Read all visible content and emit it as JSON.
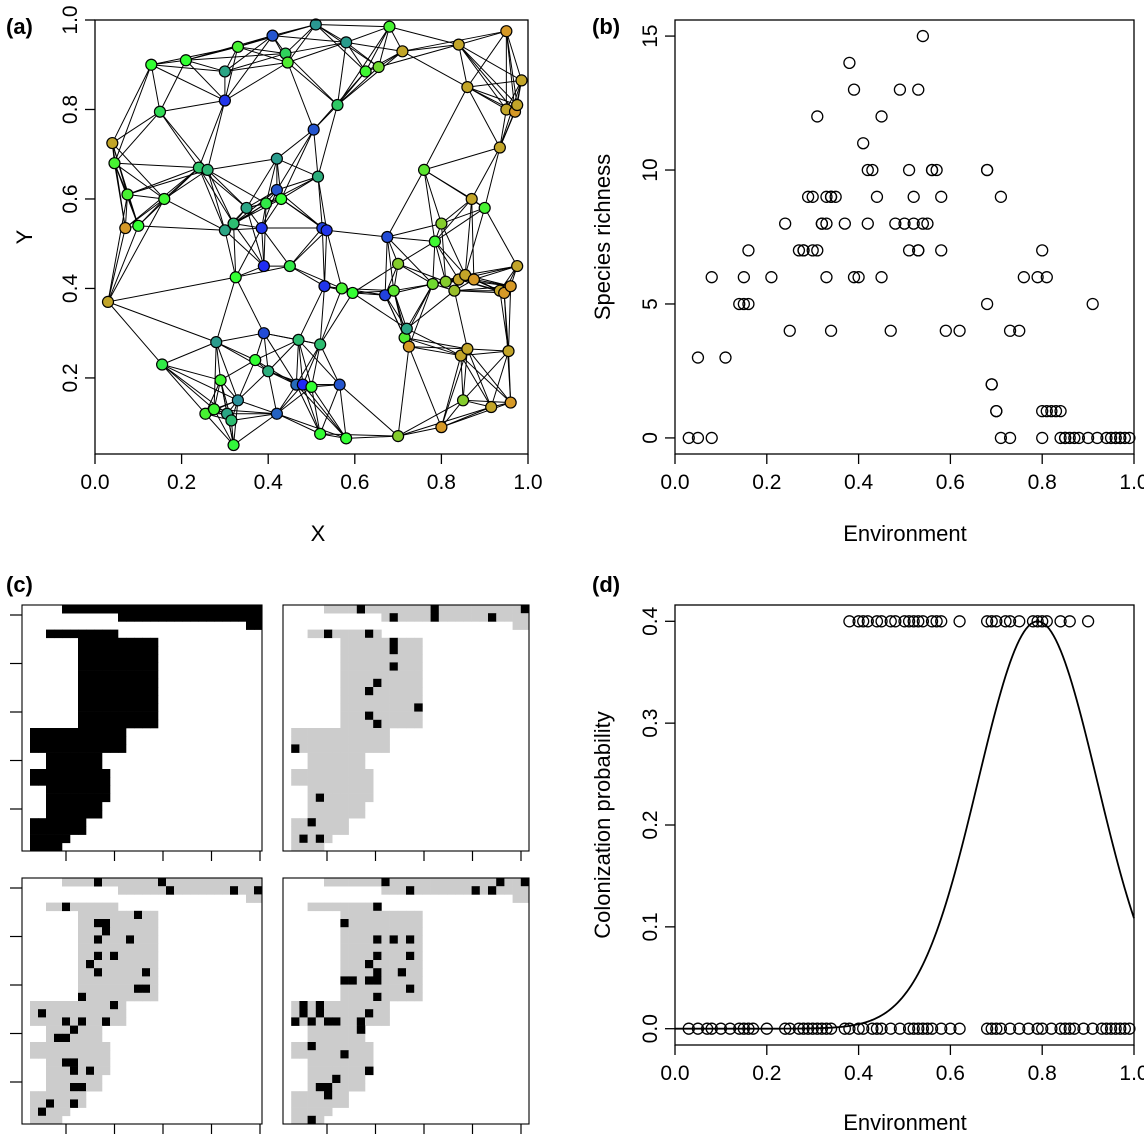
{
  "panels": {
    "a": {
      "label": "(a)"
    },
    "b": {
      "label": "(b)"
    },
    "c": {
      "label": "(c)"
    },
    "d": {
      "label": "(d)"
    }
  },
  "chart_data": [
    {
      "id": "a",
      "type": "scatter",
      "title": "",
      "xlabel": "X",
      "ylabel": "Y",
      "xlim": [
        0,
        1
      ],
      "ylim": [
        0.03,
        1.0
      ],
      "xticks": [
        "0.0",
        "0.2",
        "0.4",
        "0.6",
        "0.8",
        "1.0"
      ],
      "yticks": [
        "0.2",
        "0.4",
        "0.6",
        "0.8",
        "1.0"
      ],
      "grid": false,
      "network_edges": "each site linked to its ~7 nearest neighbours",
      "color_scale": {
        "low": "#ff7f24",
        "mid": "#33ff33",
        "high": "#1f1fff"
      },
      "points": [
        [
          0.03,
          0.37,
          0.15
        ],
        [
          0.04,
          0.725,
          0.15
        ],
        [
          0.045,
          0.68,
          0.45
        ],
        [
          0.07,
          0.535,
          0.1
        ],
        [
          0.075,
          0.61,
          0.45
        ],
        [
          0.1,
          0.54,
          0.5
        ],
        [
          0.13,
          0.9,
          0.5
        ],
        [
          0.15,
          0.795,
          0.58
        ],
        [
          0.155,
          0.23,
          0.55
        ],
        [
          0.16,
          0.6,
          0.47
        ],
        [
          0.21,
          0.91,
          0.5
        ],
        [
          0.24,
          0.67,
          0.63
        ],
        [
          0.255,
          0.12,
          0.45
        ],
        [
          0.26,
          0.665,
          0.66
        ],
        [
          0.275,
          0.13,
          0.47
        ],
        [
          0.28,
          0.28,
          0.72
        ],
        [
          0.29,
          0.195,
          0.47
        ],
        [
          0.3,
          0.885,
          0.7
        ],
        [
          0.3,
          0.53,
          0.7
        ],
        [
          0.3,
          0.82,
          0.95
        ],
        [
          0.305,
          0.12,
          0.7
        ],
        [
          0.315,
          0.105,
          0.65
        ],
        [
          0.32,
          0.05,
          0.52
        ],
        [
          0.32,
          0.545,
          0.65
        ],
        [
          0.325,
          0.425,
          0.5
        ],
        [
          0.33,
          0.94,
          0.45
        ],
        [
          0.33,
          0.15,
          0.75
        ],
        [
          0.35,
          0.58,
          0.7
        ],
        [
          0.37,
          0.24,
          0.5
        ],
        [
          0.385,
          0.535,
          0.95
        ],
        [
          0.39,
          0.45,
          0.97
        ],
        [
          0.39,
          0.3,
          0.9
        ],
        [
          0.395,
          0.59,
          0.55
        ],
        [
          0.4,
          0.215,
          0.68
        ],
        [
          0.41,
          0.965,
          0.88
        ],
        [
          0.42,
          0.12,
          0.85
        ],
        [
          0.42,
          0.62,
          0.88
        ],
        [
          0.42,
          0.69,
          0.72
        ],
        [
          0.43,
          0.6,
          0.5
        ],
        [
          0.44,
          0.925,
          0.6
        ],
        [
          0.445,
          0.905,
          0.43
        ],
        [
          0.45,
          0.45,
          0.55
        ],
        [
          0.465,
          0.185,
          0.83
        ],
        [
          0.47,
          0.285,
          0.65
        ],
        [
          0.48,
          0.185,
          0.98
        ],
        [
          0.5,
          0.18,
          0.5
        ],
        [
          0.505,
          0.755,
          0.88
        ],
        [
          0.51,
          0.99,
          0.73
        ],
        [
          0.515,
          0.65,
          0.68
        ],
        [
          0.52,
          0.275,
          0.65
        ],
        [
          0.52,
          0.075,
          0.5
        ],
        [
          0.525,
          0.535,
          0.92
        ],
        [
          0.53,
          0.405,
          0.95
        ],
        [
          0.535,
          0.53,
          0.95
        ],
        [
          0.56,
          0.81,
          0.62
        ],
        [
          0.565,
          0.185,
          0.88
        ],
        [
          0.57,
          0.4,
          0.45
        ],
        [
          0.58,
          0.065,
          0.5
        ],
        [
          0.595,
          0.39,
          0.5
        ],
        [
          0.58,
          0.95,
          0.72
        ],
        [
          0.625,
          0.885,
          0.47
        ],
        [
          0.655,
          0.895,
          0.35
        ],
        [
          0.67,
          0.385,
          0.92
        ],
        [
          0.675,
          0.515,
          0.9
        ],
        [
          0.68,
          0.985,
          0.45
        ],
        [
          0.69,
          0.395,
          0.4
        ],
        [
          0.7,
          0.455,
          0.3
        ],
        [
          0.7,
          0.07,
          0.3
        ],
        [
          0.71,
          0.93,
          0.15
        ],
        [
          0.715,
          0.29,
          0.43
        ],
        [
          0.72,
          0.31,
          0.7
        ],
        [
          0.725,
          0.27,
          0.1
        ],
        [
          0.76,
          0.665,
          0.4
        ],
        [
          0.78,
          0.41,
          0.35
        ],
        [
          0.785,
          0.505,
          0.47
        ],
        [
          0.8,
          0.09,
          0.1
        ],
        [
          0.8,
          0.545,
          0.3
        ],
        [
          0.81,
          0.415,
          0.3
        ],
        [
          0.83,
          0.395,
          0.25
        ],
        [
          0.84,
          0.945,
          0.15
        ],
        [
          0.84,
          0.42,
          0.15
        ],
        [
          0.845,
          0.25,
          0.15
        ],
        [
          0.85,
          0.15,
          0.3
        ],
        [
          0.855,
          0.43,
          0.15
        ],
        [
          0.86,
          0.85,
          0.15
        ],
        [
          0.86,
          0.265,
          0.15
        ],
        [
          0.87,
          0.6,
          0.15
        ],
        [
          0.875,
          0.42,
          0.1
        ],
        [
          0.9,
          0.58,
          0.45
        ],
        [
          0.915,
          0.135,
          0.15
        ],
        [
          0.935,
          0.715,
          0.15
        ],
        [
          0.935,
          0.395,
          0.15
        ],
        [
          0.945,
          0.39,
          0.1
        ],
        [
          0.95,
          0.975,
          0.1
        ],
        [
          0.955,
          0.26,
          0.15
        ],
        [
          0.96,
          0.145,
          0.1
        ],
        [
          0.96,
          0.405,
          0.1
        ],
        [
          0.95,
          0.8,
          0.15
        ],
        [
          0.97,
          0.795,
          0.1
        ],
        [
          0.975,
          0.81,
          0.15
        ],
        [
          0.975,
          0.45,
          0.15
        ],
        [
          0.985,
          0.865,
          0.15
        ]
      ]
    },
    {
      "id": "b",
      "type": "scatter",
      "title": "",
      "xlabel": "Environment",
      "ylabel": "Species richness",
      "xlim": [
        0,
        1
      ],
      "ylim": [
        -0.6,
        15.6
      ],
      "xticks": [
        "0.0",
        "0.2",
        "0.4",
        "0.6",
        "0.8",
        "1.0"
      ],
      "yticks": [
        "0",
        "5",
        "10",
        "15"
      ],
      "grid": false,
      "x": [
        0.03,
        0.05,
        0.08,
        0.05,
        0.08,
        0.11,
        0.14,
        0.15,
        0.16,
        0.15,
        0.16,
        0.21,
        0.24,
        0.25,
        0.27,
        0.28,
        0.29,
        0.3,
        0.31,
        0.32,
        0.33,
        0.28,
        0.3,
        0.32,
        0.34,
        0.31,
        0.33,
        0.34,
        0.33,
        0.34,
        0.35,
        0.37,
        0.38,
        0.39,
        0.39,
        0.4,
        0.41,
        0.42,
        0.42,
        0.43,
        0.44,
        0.45,
        0.45,
        0.47,
        0.48,
        0.49,
        0.5,
        0.51,
        0.51,
        0.52,
        0.53,
        0.52,
        0.53,
        0.54,
        0.53,
        0.54,
        0.55,
        0.56,
        0.56,
        0.57,
        0.58,
        0.59,
        0.62,
        0.58,
        0.68,
        0.68,
        0.68,
        0.69,
        0.69,
        0.7,
        0.7,
        0.71,
        0.71,
        0.73,
        0.73,
        0.75,
        0.76,
        0.79,
        0.8,
        0.8,
        0.81,
        0.8,
        0.81,
        0.82,
        0.83,
        0.84,
        0.84,
        0.85,
        0.86,
        0.85,
        0.87,
        0.88,
        0.9,
        0.91,
        0.92,
        0.94,
        0.95,
        0.96,
        0.97,
        0.98,
        0.97,
        0.96,
        0.99
      ],
      "y": [
        0,
        0,
        0,
        3,
        6,
        3,
        5,
        6,
        7,
        5,
        5,
        6,
        8,
        4,
        7,
        7,
        9,
        9,
        12,
        8,
        9,
        7,
        7,
        8,
        9,
        7,
        8,
        9,
        6,
        4,
        9,
        8,
        14,
        6,
        13,
        6,
        11,
        8,
        10,
        10,
        9,
        12,
        6,
        4,
        8,
        13,
        8,
        7,
        10,
        9,
        7,
        8,
        13,
        15,
        7,
        8,
        8,
        10,
        10,
        10,
        9,
        4,
        4,
        7,
        10,
        10,
        5,
        2,
        2,
        1,
        1,
        0,
        9,
        0,
        4,
        4,
        6,
        6,
        1,
        7,
        6,
        0,
        1,
        1,
        1,
        0,
        1,
        0,
        0,
        0,
        0,
        0,
        0,
        5,
        0,
        0,
        0,
        0,
        0,
        0,
        0,
        0,
        0
      ]
    },
    {
      "id": "c",
      "type": "heatmap",
      "title": "",
      "xlabel": "",
      "ylabel": "",
      "grid": false,
      "subplots": 4,
      "colors": {
        "black": "#000000",
        "grey": "#cccccc",
        "white": "#ffffff"
      },
      "cols": 30,
      "rows": 30,
      "rows_data": [
        [
          5,
          30
        ],
        [
          12,
          30
        ],
        [
          28,
          30
        ],
        [
          3,
          12
        ],
        [
          7,
          17
        ],
        [
          7,
          17
        ],
        [
          7,
          17
        ],
        [
          7,
          17
        ],
        [
          7,
          17
        ],
        [
          7,
          17
        ],
        [
          7,
          17
        ],
        [
          7,
          17
        ],
        [
          7,
          17
        ],
        [
          7,
          17
        ],
        [
          7,
          17
        ],
        [
          1,
          13
        ],
        [
          1,
          13
        ],
        [
          1,
          13
        ],
        [
          3,
          10
        ],
        [
          3,
          10
        ],
        [
          1,
          11
        ],
        [
          1,
          11
        ],
        [
          3,
          11
        ],
        [
          3,
          11
        ],
        [
          3,
          10
        ],
        [
          3,
          10
        ],
        [
          1,
          8
        ],
        [
          1,
          8
        ],
        [
          1,
          6
        ],
        [
          1,
          5
        ]
      ]
    },
    {
      "id": "d",
      "type": "line",
      "title": "",
      "xlabel": "Environment",
      "ylabel": "Colonization probability",
      "xlim": [
        0,
        1
      ],
      "ylim": [
        -0.016,
        0.416
      ],
      "xticks": [
        "0.0",
        "0.2",
        "0.4",
        "0.6",
        "0.8",
        "1.0"
      ],
      "yticks": [
        "0.0",
        "0.1",
        "0.2",
        "0.3",
        "0.4"
      ],
      "grid": false,
      "curve": {
        "peak_x": 0.79,
        "peak_y": 0.4,
        "sigma": 0.13
      },
      "points_top_x": [
        0.38,
        0.4,
        0.41,
        0.42,
        0.44,
        0.45,
        0.47,
        0.48,
        0.5,
        0.51,
        0.52,
        0.53,
        0.54,
        0.56,
        0.57,
        0.58,
        0.62,
        0.68,
        0.69,
        0.7,
        0.72,
        0.73,
        0.75,
        0.78,
        0.79,
        0.8,
        0.81,
        0.84,
        0.86,
        0.9
      ],
      "points_bottom_x": [
        0.03,
        0.05,
        0.07,
        0.08,
        0.1,
        0.12,
        0.14,
        0.15,
        0.16,
        0.17,
        0.2,
        0.24,
        0.25,
        0.27,
        0.28,
        0.29,
        0.3,
        0.31,
        0.32,
        0.33,
        0.34,
        0.37,
        0.38,
        0.4,
        0.41,
        0.43,
        0.44,
        0.45,
        0.47,
        0.49,
        0.51,
        0.52,
        0.53,
        0.54,
        0.55,
        0.56,
        0.58,
        0.6,
        0.62,
        0.68,
        0.69,
        0.7,
        0.71,
        0.73,
        0.75,
        0.77,
        0.79,
        0.8,
        0.82,
        0.84,
        0.85,
        0.86,
        0.87,
        0.89,
        0.91,
        0.93,
        0.94,
        0.95,
        0.96,
        0.97,
        0.98,
        0.99
      ]
    }
  ]
}
